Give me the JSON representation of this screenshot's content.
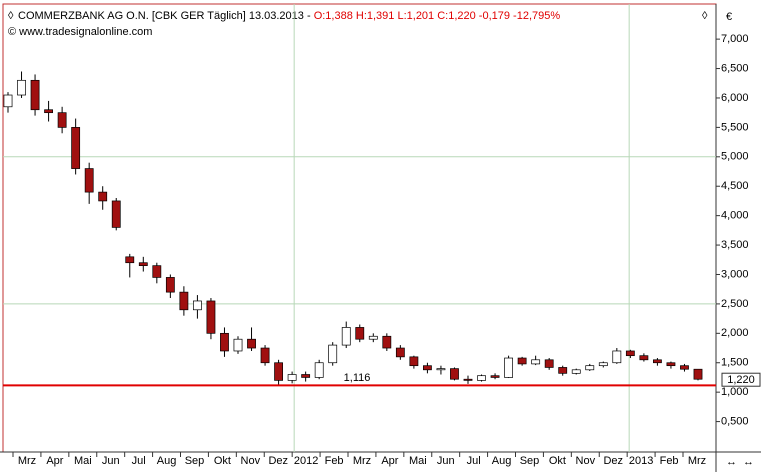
{
  "chart_data": {
    "type": "candlestick",
    "title": "COMMERZBANK AG O.N. [CBK GER  Täglich] 13.03.2013 - ",
    "title_quote": "O:1,388 H:1,391 L:1,201 C:1,220 -0,179 -12,795%",
    "subtitle": "© www.tradesignalonline.com",
    "currency": "€",
    "categories": [
      "Mrz",
      "Apr",
      "Mai",
      "Jun",
      "Jul",
      "Aug",
      "Sep",
      "Okt",
      "Nov",
      "Dez",
      "2012",
      "Feb",
      "Mrz",
      "Apr",
      "Mai",
      "Jun",
      "Jul",
      "Aug",
      "Sep",
      "Okt",
      "Nov",
      "Dez",
      "2013",
      "Feb",
      "Mrz"
    ],
    "open": [
      5.85,
      6.05,
      6.3,
      5.8,
      5.75,
      5.5,
      4.8,
      4.4,
      4.25,
      3.3,
      3.2,
      3.15,
      2.95,
      2.7,
      2.4,
      2.55,
      2.0,
      1.7,
      1.9,
      1.75,
      1.5,
      1.2,
      1.3,
      1.25,
      1.5,
      1.8,
      2.1,
      1.9,
      1.95,
      1.75,
      1.6,
      1.45,
      1.38,
      1.4,
      1.22,
      1.2,
      1.28,
      1.25,
      1.58,
      1.48,
      1.55,
      1.42,
      1.32,
      1.38,
      1.45,
      1.5,
      1.7,
      1.62,
      1.55,
      1.5,
      1.45,
      1.39
    ],
    "high": [
      6.1,
      6.45,
      6.4,
      5.95,
      5.85,
      5.65,
      4.9,
      4.5,
      4.3,
      3.35,
      3.3,
      3.2,
      3.0,
      2.8,
      2.65,
      2.6,
      2.1,
      1.95,
      2.1,
      1.8,
      1.55,
      1.35,
      1.35,
      1.55,
      1.85,
      2.2,
      2.15,
      2.0,
      2.0,
      1.8,
      1.62,
      1.5,
      1.45,
      1.42,
      1.28,
      1.3,
      1.32,
      1.62,
      1.6,
      1.62,
      1.58,
      1.45,
      1.4,
      1.48,
      1.52,
      1.75,
      1.72,
      1.66,
      1.58,
      1.52,
      1.48,
      1.39
    ],
    "low": [
      5.75,
      6.0,
      5.7,
      5.6,
      5.4,
      4.7,
      4.2,
      4.1,
      3.75,
      2.95,
      3.05,
      2.85,
      2.6,
      2.3,
      2.25,
      1.9,
      1.6,
      1.65,
      1.7,
      1.45,
      1.12,
      1.15,
      1.18,
      1.22,
      1.45,
      1.75,
      1.85,
      1.85,
      1.7,
      1.55,
      1.4,
      1.32,
      1.3,
      1.2,
      1.14,
      1.18,
      1.22,
      1.24,
      1.45,
      1.46,
      1.38,
      1.28,
      1.3,
      1.36,
      1.42,
      1.48,
      1.58,
      1.52,
      1.45,
      1.4,
      1.35,
      1.2
    ],
    "close": [
      6.05,
      6.3,
      5.8,
      5.75,
      5.5,
      4.8,
      4.4,
      4.25,
      3.8,
      3.2,
      3.15,
      2.95,
      2.7,
      2.4,
      2.55,
      2.0,
      1.7,
      1.9,
      1.75,
      1.5,
      1.2,
      1.3,
      1.25,
      1.5,
      1.8,
      2.1,
      1.9,
      1.95,
      1.75,
      1.6,
      1.45,
      1.38,
      1.4,
      1.22,
      1.2,
      1.28,
      1.25,
      1.58,
      1.48,
      1.55,
      1.42,
      1.32,
      1.38,
      1.45,
      1.5,
      1.7,
      1.62,
      1.55,
      1.5,
      1.45,
      1.39,
      1.22
    ],
    "up_color": "#ffffff",
    "down_color": "#a01010",
    "ylim": [
      0,
      7.58
    ],
    "yticks": [
      {
        "value": 0.5,
        "label": "0,500"
      },
      {
        "value": 1,
        "label": "1,000"
      },
      {
        "value": 1.5,
        "label": "1,500"
      },
      {
        "value": 2,
        "label": "2,000"
      },
      {
        "value": 2.5,
        "label": "2,500"
      },
      {
        "value": 3,
        "label": "3,000"
      },
      {
        "value": 3.5,
        "label": "3,500"
      },
      {
        "value": 4,
        "label": "4,000"
      },
      {
        "value": 4.5,
        "label": "4,500"
      },
      {
        "value": 5,
        "label": "5,000"
      },
      {
        "value": 5.5,
        "label": "5,500"
      },
      {
        "value": 6,
        "label": "6,000"
      },
      {
        "value": 6.5,
        "label": "6,500"
      },
      {
        "value": 7,
        "label": "7,000"
      }
    ],
    "ygrid": [
      2.5,
      5
    ],
    "reference_line": {
      "value": 1.116,
      "label": "1,116",
      "color": "#e00000"
    },
    "last_price": {
      "value": 1.22,
      "label": "1,220"
    }
  }
}
